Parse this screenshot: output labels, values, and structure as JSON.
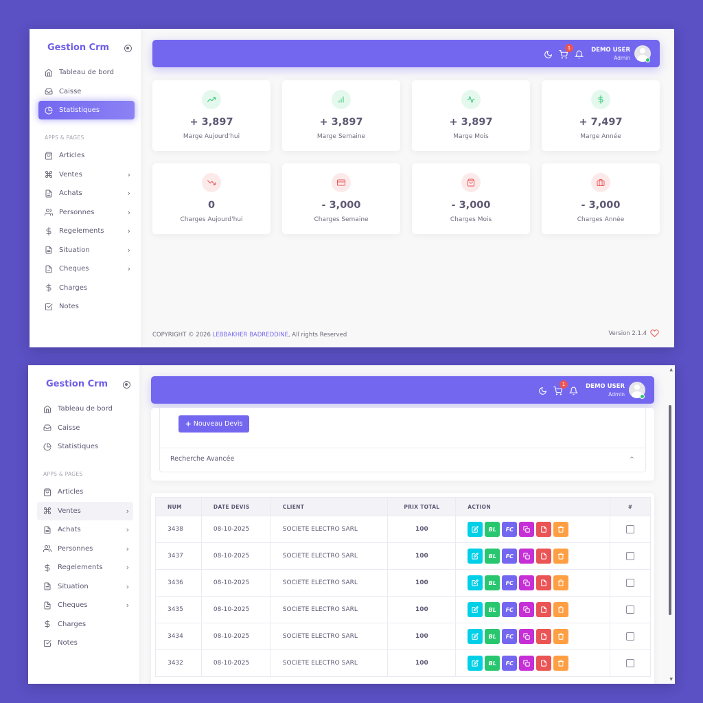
{
  "brand": "Gestion Crm",
  "sidebar": {
    "section_label": "APPS & PAGES",
    "top_items": [
      {
        "label": "Tableau de bord",
        "icon": "home-icon"
      },
      {
        "label": "Caisse",
        "icon": "inbox-icon"
      },
      {
        "label": "Statistiques",
        "icon": "pie-chart-icon"
      }
    ],
    "items": [
      {
        "label": "Articles",
        "icon": "shopping-bag-icon",
        "chevron": false
      },
      {
        "label": "Ventes",
        "icon": "command-icon",
        "chevron": true
      },
      {
        "label": "Achats",
        "icon": "file-text-icon",
        "chevron": true
      },
      {
        "label": "Personnes",
        "icon": "users-icon",
        "chevron": true
      },
      {
        "label": "Regelements",
        "icon": "dollar-icon",
        "chevron": true
      },
      {
        "label": "Situation",
        "icon": "file-text-icon",
        "chevron": true
      },
      {
        "label": "Cheques",
        "icon": "file-icon",
        "chevron": true
      },
      {
        "label": "Charges",
        "icon": "dollar-icon",
        "chevron": false
      },
      {
        "label": "Notes",
        "icon": "check-square-icon",
        "chevron": false
      }
    ]
  },
  "topbar": {
    "cart_count": "1",
    "user_name": "DEMO USER",
    "user_role": "Admin"
  },
  "stats": {
    "margins": [
      {
        "value": "+ 3,897",
        "label": "Marge Aujourd'hui",
        "icon": "trending-up-icon",
        "color": "#28c76f",
        "bg": "#e5f8ed"
      },
      {
        "value": "+ 3,897",
        "label": "Marge Semaine",
        "icon": "bar-chart-icon",
        "color": "#28c76f",
        "bg": "#e5f8ed"
      },
      {
        "value": "+ 3,897",
        "label": "Marge Mois",
        "icon": "activity-icon",
        "color": "#28c76f",
        "bg": "#e5f8ed"
      },
      {
        "value": "+ 7,497",
        "label": "Marge Année",
        "icon": "dollar-icon",
        "color": "#28c76f",
        "bg": "#e5f8ed"
      }
    ],
    "charges": [
      {
        "value": "0",
        "label": "Charges Aujourd'hui",
        "icon": "trending-down-icon",
        "color": "#ea5455",
        "bg": "#fceaea"
      },
      {
        "value": "- 3,000",
        "label": "Charges Semaine",
        "icon": "credit-card-icon",
        "color": "#ea5455",
        "bg": "#fceaea"
      },
      {
        "value": "- 3,000",
        "label": "Charges Mois",
        "icon": "shopping-bag-icon",
        "color": "#ea5455",
        "bg": "#fceaea"
      },
      {
        "value": "- 3,000",
        "label": "Charges Année",
        "icon": "briefcase-icon",
        "color": "#ea5455",
        "bg": "#fceaea"
      }
    ]
  },
  "footer": {
    "copyright_prefix": "COPYRIGHT © 2026 ",
    "author": "LEBBAKHER BADREDDINE",
    "copyright_suffix": ", All rights Reserved",
    "version": "Version 2.1.4"
  },
  "devis": {
    "new_button": "Nouveau Devis",
    "advanced_search": "Recherche Avancée",
    "columns": [
      "NUM",
      "DATE DEVIS",
      "CLIENT",
      "PRIX TOTAL",
      "ACTION",
      "#"
    ],
    "action_labels": {
      "bl": "BL",
      "fc": "FC"
    },
    "action_colors": {
      "edit": "#00cfe8",
      "bl": "#28c76f",
      "fc": "#7367f0",
      "copy": "#c62fd6",
      "pdf": "#ea5455",
      "delete": "#ff9f43"
    },
    "rows": [
      {
        "num": "3438",
        "date": "08-10-2025",
        "client": "SOCIETE ELECTRO SARL",
        "total": "100"
      },
      {
        "num": "3437",
        "date": "08-10-2025",
        "client": "SOCIETE ELECTRO SARL",
        "total": "100"
      },
      {
        "num": "3436",
        "date": "08-10-2025",
        "client": "SOCIETE ELECTRO SARL",
        "total": "100"
      },
      {
        "num": "3435",
        "date": "08-10-2025",
        "client": "SOCIETE ELECTRO SARL",
        "total": "100"
      },
      {
        "num": "3434",
        "date": "08-10-2025",
        "client": "SOCIETE ELECTRO SARL",
        "total": "100"
      },
      {
        "num": "3432",
        "date": "08-10-2025",
        "client": "SOCIETE ELECTRO SARL",
        "total": "100"
      }
    ]
  },
  "colors": {
    "accent": "#7367f0",
    "background": "#5b50c4",
    "success": "#28c76f",
    "danger": "#ea5455"
  }
}
